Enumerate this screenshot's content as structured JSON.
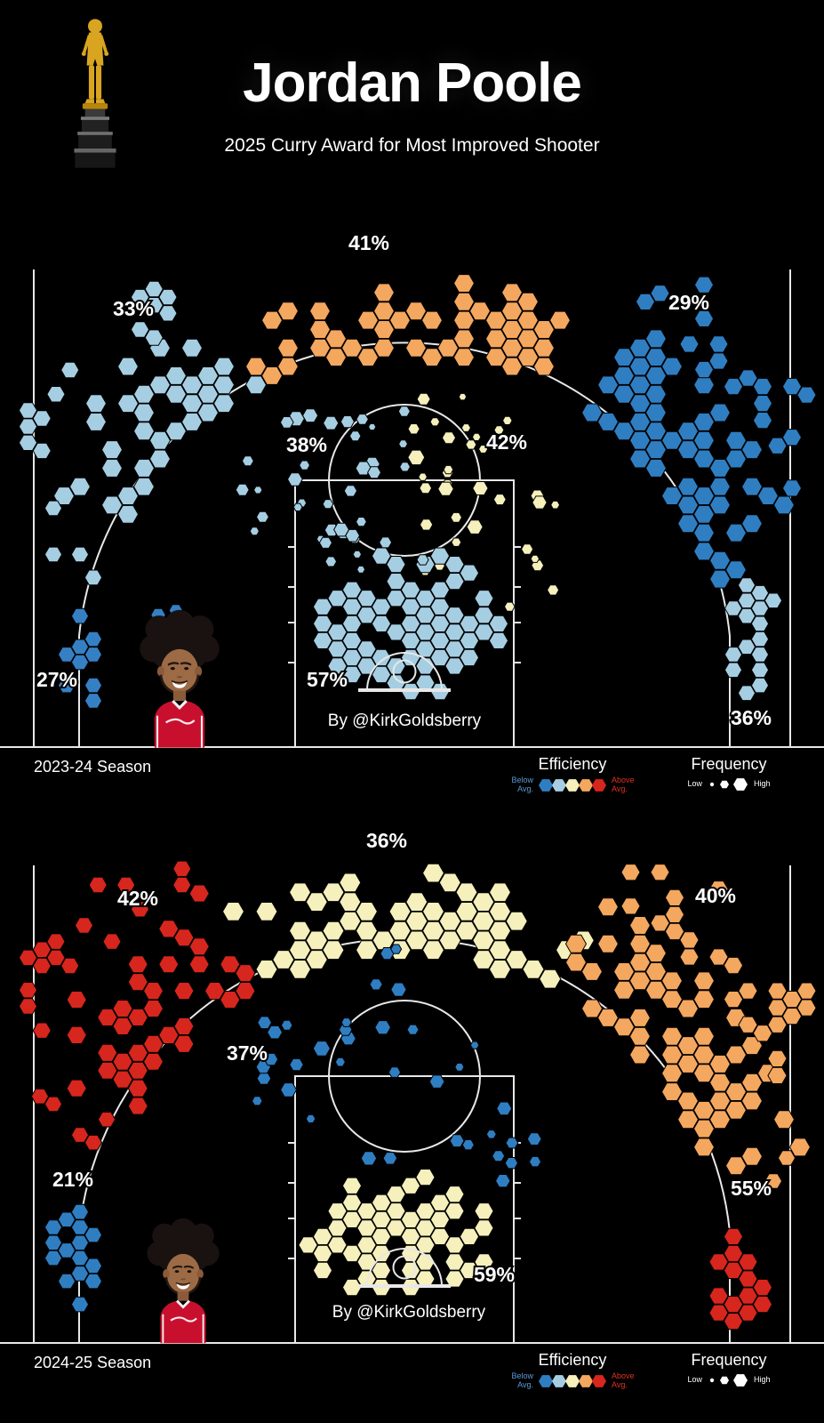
{
  "header": {
    "title": "Jordan Poole",
    "subtitle": "2025 Curry Award for Most Improved Shooter",
    "trophy_icon": "curry-award-trophy"
  },
  "colors": {
    "background": "#000000",
    "court_lines": "#e8e8e8",
    "text": "#ffffff",
    "efficiency_scale": [
      "#2f7ec2",
      "#a6cee3",
      "#f5f0bc",
      "#f4a75f",
      "#d7261d"
    ],
    "below_avg_label": "#5b9bd5",
    "above_avg_label": "#e0331f",
    "frequency_glyphs": "#ffffff"
  },
  "legend": {
    "efficiency_title": "Efficiency",
    "below_avg": "Below Avg.",
    "above_avg": "Above Avg.",
    "frequency_title": "Frequency",
    "low": "Low",
    "high": "High"
  },
  "chart_data": [
    {
      "type": "hexbin_shot_chart",
      "season": "2023-24 Season",
      "player": "Jordan Poole",
      "attribution": "By @KirkGoldsberry",
      "zones": [
        {
          "id": "left-corner-three",
          "fg_pct": 27,
          "label": "27%",
          "color": "#3580c4",
          "efficiency": "below average"
        },
        {
          "id": "left-wing-three",
          "fg_pct": 33,
          "label": "33%",
          "color": "#a6cee3",
          "efficiency": "below average"
        },
        {
          "id": "top-key-three",
          "fg_pct": 41,
          "label": "41%",
          "color": "#f4a75f",
          "efficiency": "above average"
        },
        {
          "id": "right-wing-three",
          "fg_pct": 29,
          "label": "29%",
          "color": "#2f7ec2",
          "efficiency": "below average"
        },
        {
          "id": "right-corner-three",
          "fg_pct": 36,
          "label": "36%",
          "color": "#a6cee3",
          "efficiency": "below average"
        },
        {
          "id": "left-midrange",
          "fg_pct": 38,
          "label": "38%",
          "color": "#a6cee3",
          "efficiency": "below average"
        },
        {
          "id": "right-midrange",
          "fg_pct": 42,
          "label": "42%",
          "color": "#f5f0bc",
          "efficiency": "average"
        },
        {
          "id": "paint",
          "fg_pct": 57,
          "label": "57%",
          "color": "#a6cee3",
          "efficiency": "below average"
        }
      ]
    },
    {
      "type": "hexbin_shot_chart",
      "season": "2024-25 Season",
      "player": "Jordan Poole",
      "attribution": "By @KirkGoldsberry",
      "zones": [
        {
          "id": "left-corner-three",
          "fg_pct": 21,
          "label": "21%",
          "color": "#2f7ec2",
          "efficiency": "below average"
        },
        {
          "id": "left-wing-three",
          "fg_pct": 42,
          "label": "42%",
          "color": "#d7261d",
          "efficiency": "well above average"
        },
        {
          "id": "top-key-three",
          "fg_pct": 36,
          "label": "36%",
          "color": "#f5f0bc",
          "efficiency": "average"
        },
        {
          "id": "right-wing-three",
          "fg_pct": 40,
          "label": "40%",
          "color": "#f4a75f",
          "efficiency": "above average"
        },
        {
          "id": "right-corner-three",
          "fg_pct": 55,
          "label": "55%",
          "color": "#d7261d",
          "efficiency": "well above average"
        },
        {
          "id": "midrange",
          "fg_pct": 37,
          "label": "37%",
          "color": "#2f7ec2",
          "efficiency": "below average"
        },
        {
          "id": "paint",
          "fg_pct": 59,
          "label": "59%",
          "color": "#f5f0bc",
          "efficiency": "average"
        }
      ]
    }
  ]
}
